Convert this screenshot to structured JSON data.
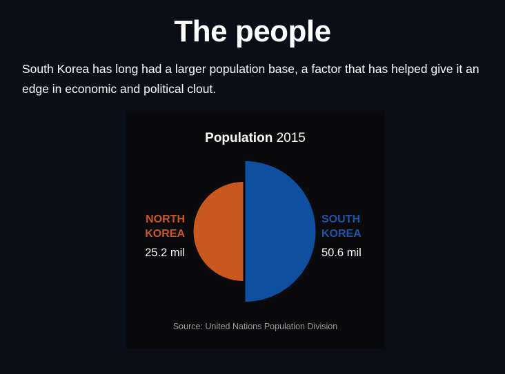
{
  "page": {
    "title": "The people",
    "intro": "South Korea has long had a larger population base, a factor that has helped give it an edge in economic and political clout."
  },
  "chart_data": {
    "type": "pie",
    "title": "Population",
    "title_year": "2015",
    "series": [
      {
        "name": "NORTH\nKOREA",
        "value": 25.2,
        "unit": "mil",
        "display": "25.2 mil",
        "color": "#c9581f"
      },
      {
        "name": "SOUTH\nKOREA",
        "value": 50.6,
        "unit": "mil",
        "display": "50.6 mil",
        "color": "#0f4fa0"
      }
    ],
    "source": "Source: United Nations Population Division"
  }
}
